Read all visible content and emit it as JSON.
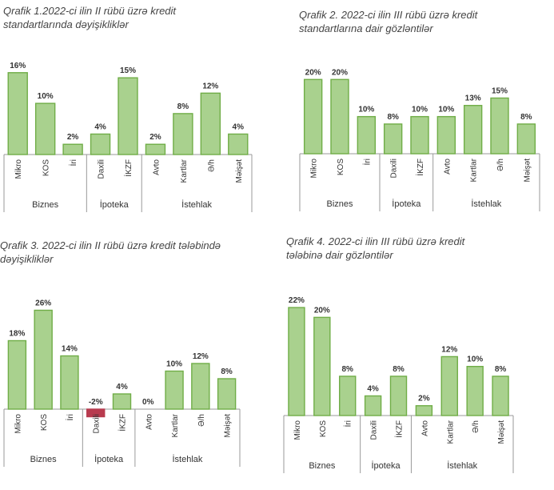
{
  "colors": {
    "bar_fill": "#a9d18e",
    "bar_stroke": "#70ad47",
    "negative_fill": "#b83b4f",
    "axis": "#9a9a9a",
    "title_text": "#444444",
    "label_text": "#333333"
  },
  "charts": [
    {
      "title": "Qrafik 1.2022-ci ilin II rübü üzrə kredit\nstandartlarında dəyişikliklər",
      "chart_data": {
        "type": "bar",
        "categories": [
          "Mikro",
          "KOS",
          "İri",
          "Daxili",
          "İKZF",
          "Avto",
          "Kartlar",
          "Ə/h",
          "Məişət"
        ],
        "values": [
          16,
          10,
          2,
          4,
          15,
          2,
          8,
          12,
          4
        ],
        "data_labels": [
          "16%",
          "10%",
          "2%",
          "4%",
          "15%",
          "2%",
          "8%",
          "12%",
          "4%"
        ],
        "groups": [
          {
            "label": "Biznes",
            "count": 3
          },
          {
            "label": "İpoteka",
            "count": 2
          },
          {
            "label": "İstehlak",
            "count": 4
          }
        ],
        "ylim": [
          0,
          18
        ]
      }
    },
    {
      "title": "Qrafik 2. 2022-ci ilin III rübü üzrə kredit\nstandartlarına dair gözləntilər",
      "chart_data": {
        "type": "bar",
        "categories": [
          "Mikro",
          "KOS",
          "İri",
          "Daxili",
          "İKZF",
          "Avto",
          "Kartlar",
          "Ə/h",
          "Məişət"
        ],
        "values": [
          20,
          20,
          10,
          8,
          10,
          10,
          13,
          15,
          8
        ],
        "data_labels": [
          "20%",
          "20%",
          "10%",
          "8%",
          "10%",
          "10%",
          "13%",
          "15%",
          "8%"
        ],
        "groups": [
          {
            "label": "Biznes",
            "count": 3
          },
          {
            "label": "İpoteka",
            "count": 2
          },
          {
            "label": "İstehlak",
            "count": 4
          }
        ],
        "ylim": [
          0,
          22
        ]
      }
    },
    {
      "title": "Qrafik 3. 2022-ci ilin II rübü üzrə kredit tələbində\ndəyişikliklər",
      "chart_data": {
        "type": "bar",
        "categories": [
          "Mikro",
          "KOS",
          "İri",
          "Daxili",
          "İKZF",
          "Avto",
          "Kartlar",
          "Ə/h",
          "Məişət"
        ],
        "values": [
          18,
          26,
          14,
          -2,
          4,
          0,
          10,
          12,
          8
        ],
        "data_labels": [
          "18%",
          "26%",
          "14%",
          "-2%",
          "4%",
          "0%",
          "10%",
          "12%",
          "8%"
        ],
        "groups": [
          {
            "label": "Biznes",
            "count": 3
          },
          {
            "label": "İpoteka",
            "count": 2
          },
          {
            "label": "İstehlak",
            "count": 4
          }
        ],
        "ylim": [
          -3,
          28
        ]
      }
    },
    {
      "title": "Qrafik 4. 2022-ci ilin III rübü üzrə kredit\ntələbinə dair gözləntilər",
      "chart_data": {
        "type": "bar",
        "categories": [
          "Mikro",
          "KOS",
          "İri",
          "Daxili",
          "İKZF",
          "Avto",
          "Kartlar",
          "Ə/h",
          "Məişət"
        ],
        "values": [
          22,
          20,
          8,
          4,
          8,
          2,
          12,
          10,
          8
        ],
        "data_labels": [
          "22%",
          "20%",
          "8%",
          "4%",
          "8%",
          "2%",
          "12%",
          "10%",
          "8%"
        ],
        "groups": [
          {
            "label": "Biznes",
            "count": 3
          },
          {
            "label": "İpoteka",
            "count": 2
          },
          {
            "label": "İstehlak",
            "count": 4
          }
        ],
        "ylim": [
          0,
          23
        ]
      }
    }
  ]
}
